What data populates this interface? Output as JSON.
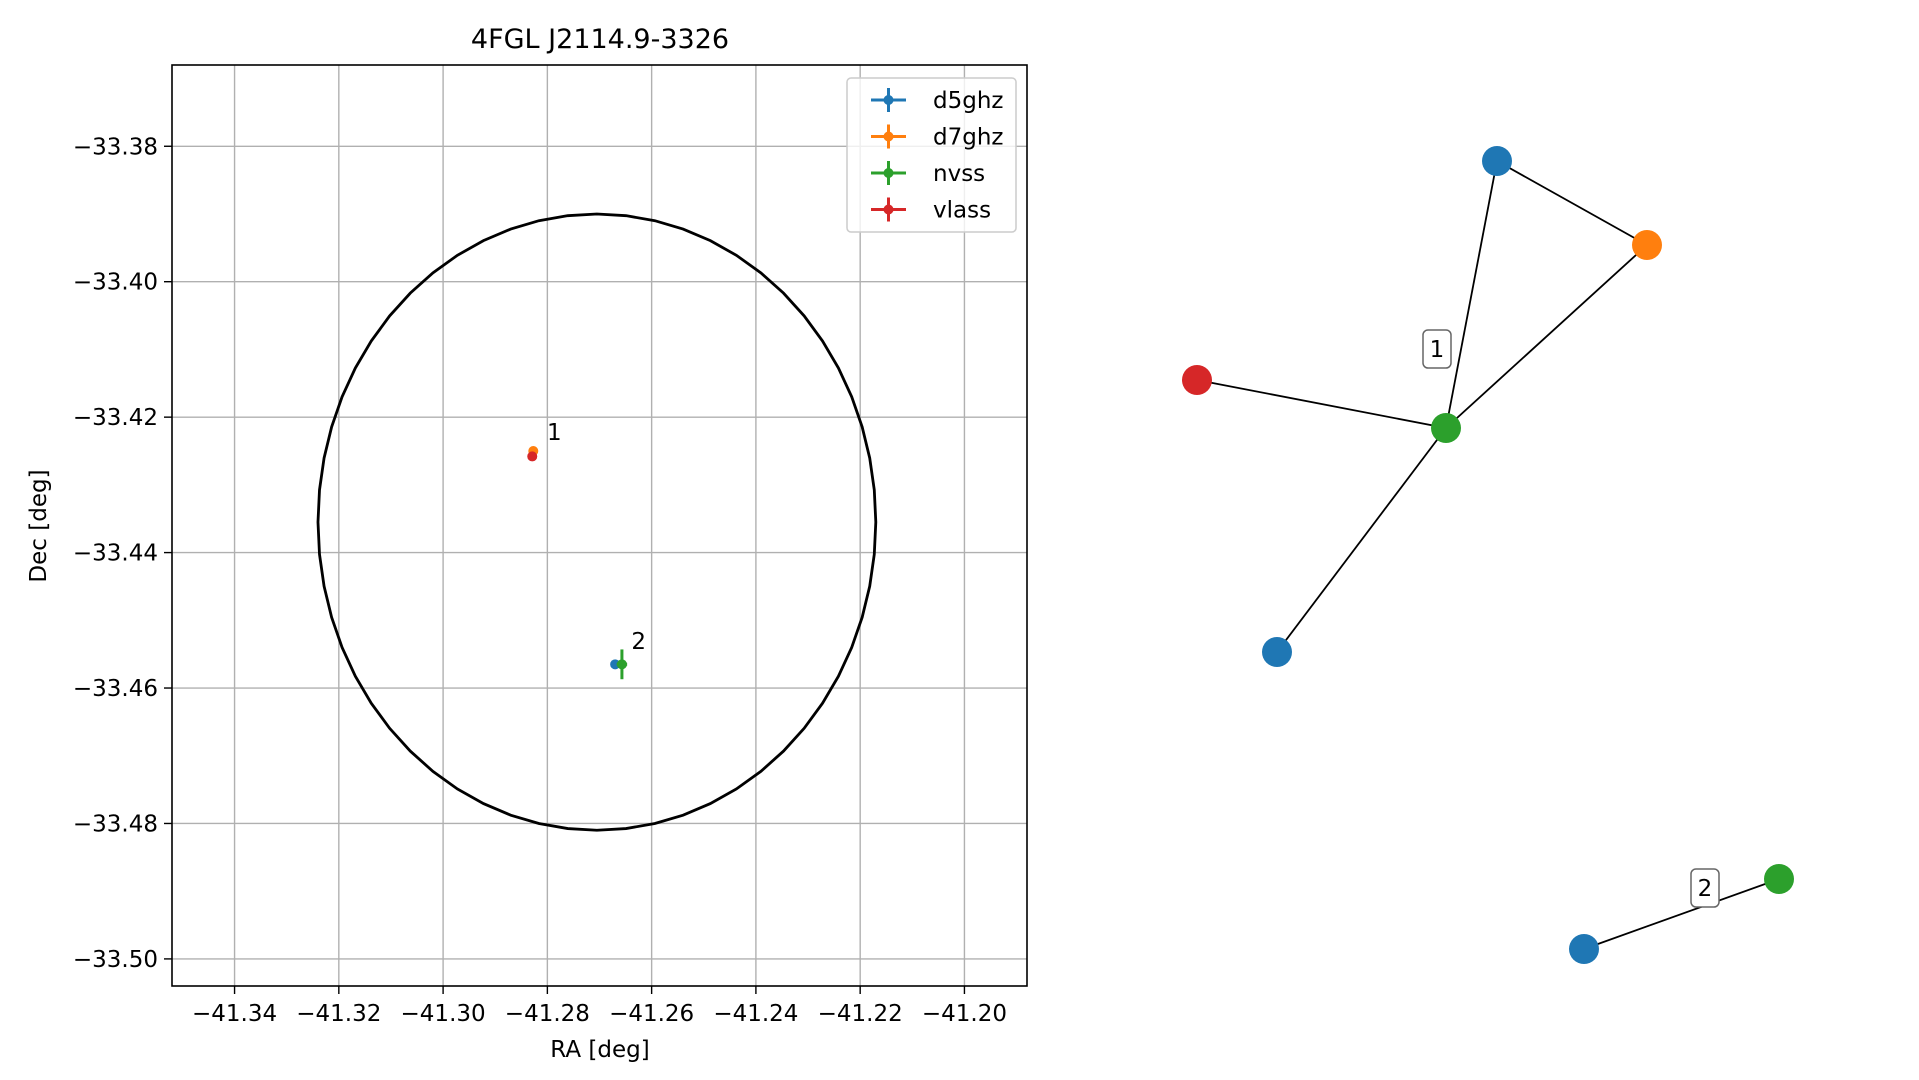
{
  "colors": {
    "d5ghz": "#1f77b4",
    "d7ghz": "#ff7f0e",
    "nvss": "#2ca02c",
    "vlass": "#d62728",
    "edge": "#000000",
    "grid": "#b0b0b0",
    "ellipse": "#000000"
  },
  "chart_data": [
    {
      "type": "scatter",
      "title": "4FGL J2114.9-3326",
      "xlabel": "RA [deg]",
      "ylabel": "Dec [deg]",
      "xlim": [
        -41.352,
        -41.188
      ],
      "ylim": [
        -33.504,
        -33.368
      ],
      "xticks": [
        -41.34,
        -41.32,
        -41.3,
        -41.28,
        -41.26,
        -41.24,
        -41.22,
        -41.2
      ],
      "xtick_labels": [
        "−41.34",
        "−41.32",
        "−41.30",
        "−41.28",
        "−41.26",
        "−41.24",
        "−41.22",
        "−41.20"
      ],
      "yticks": [
        -33.38,
        -33.4,
        -33.42,
        -33.44,
        -33.46,
        -33.48,
        -33.5
      ],
      "ytick_labels": [
        "−33.38",
        "−33.40",
        "−33.42",
        "−33.44",
        "−33.46",
        "−33.48",
        "−33.50"
      ],
      "grid": true,
      "legend": {
        "placement": "top-right",
        "entries": [
          "d5ghz",
          "d7ghz",
          "nvss",
          "vlass"
        ]
      },
      "error_ellipse": {
        "center": [
          -41.2705,
          -33.4355
        ],
        "semi_axis_ra": 0.0535,
        "semi_axis_dec": 0.0455
      },
      "series": [
        {
          "name": "d5ghz",
          "x": [
            -41.267
          ],
          "y": [
            -33.4565
          ],
          "xerr": [
            0.0002
          ],
          "yerr": [
            0.0002
          ]
        },
        {
          "name": "d7ghz",
          "x": [
            -41.2827
          ],
          "y": [
            -33.425
          ],
          "xerr": [
            0.0002
          ],
          "yerr": [
            0.0002
          ]
        },
        {
          "name": "nvss",
          "x": [
            -41.2657
          ],
          "y": [
            -33.4565
          ],
          "xerr": [
            0.001
          ],
          "yerr": [
            0.0022
          ]
        },
        {
          "name": "vlass",
          "x": [
            -41.2829
          ],
          "y": [
            -33.4258
          ],
          "xerr": [
            0.0002
          ],
          "yerr": [
            0.0002
          ]
        }
      ],
      "annotations": [
        {
          "text": "1",
          "x": -41.282,
          "y": -33.424
        },
        {
          "text": "2",
          "x": -41.2658,
          "y": -33.4548
        }
      ]
    },
    {
      "type": "network",
      "groups": [
        {
          "label": "1",
          "nodes": [
            {
              "id": "a",
              "catalog": "d5ghz"
            },
            {
              "id": "b",
              "catalog": "d7ghz"
            },
            {
              "id": "c",
              "catalog": "vlass"
            },
            {
              "id": "d",
              "catalog": "nvss"
            },
            {
              "id": "e",
              "catalog": "d5ghz"
            }
          ],
          "edges": [
            [
              "a",
              "b"
            ],
            [
              "a",
              "d"
            ],
            [
              "b",
              "d"
            ],
            [
              "c",
              "d"
            ],
            [
              "d",
              "e"
            ]
          ]
        },
        {
          "label": "2",
          "nodes": [
            {
              "id": "f",
              "catalog": "nvss"
            },
            {
              "id": "g",
              "catalog": "d5ghz"
            }
          ],
          "edges": [
            [
              "f",
              "g"
            ]
          ]
        }
      ]
    }
  ]
}
